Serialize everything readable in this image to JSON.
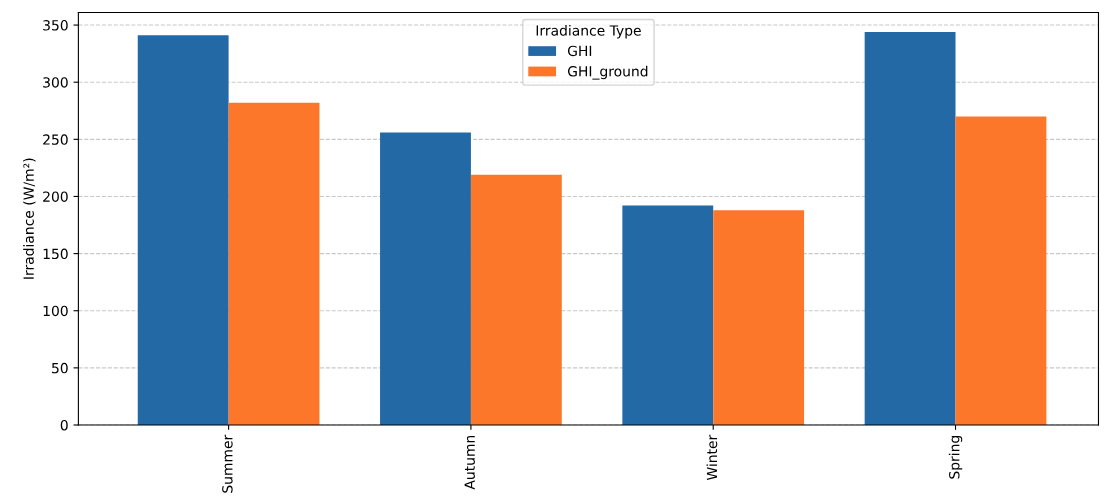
{
  "chart_data": {
    "type": "bar",
    "ylabel": "Irradiance (W/m²)",
    "legend_title": "Irradiance Type",
    "categories": [
      "Summer",
      "Autumn",
      "Winter",
      "Spring"
    ],
    "series": [
      {
        "name": "GHI",
        "color": "#2369a6",
        "values": [
          341,
          256,
          192,
          344
        ]
      },
      {
        "name": "GHI_ground",
        "color": "#fc772a",
        "values": [
          282,
          219,
          188,
          270
        ]
      }
    ],
    "ylim": [
      0,
      361
    ],
    "yticks": [
      0,
      50,
      100,
      150,
      200,
      250,
      300,
      350
    ],
    "grid": "y",
    "legend": "top center"
  }
}
